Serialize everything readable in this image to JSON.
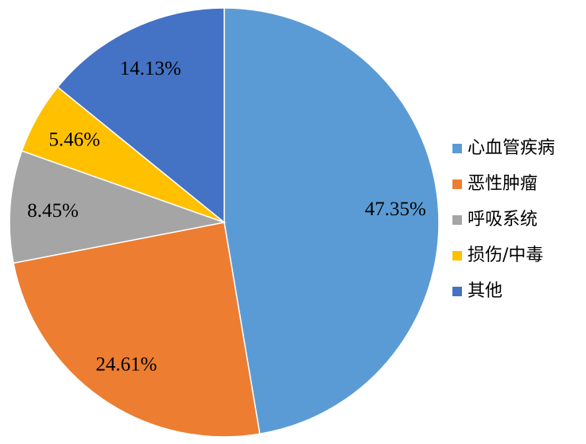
{
  "chart_data": {
    "type": "pie",
    "categories": [
      "心血管疾病",
      "恶性肿瘤",
      "呼吸系统",
      "损伤/中毒",
      "其他"
    ],
    "values": [
      47.35,
      24.61,
      8.45,
      5.46,
      14.13
    ],
    "value_labels": [
      "47.35%",
      "24.61%",
      "8.45%",
      "5.46%",
      "14.13%"
    ],
    "colors": [
      "#5b9bd5",
      "#ed7d31",
      "#a5a5a5",
      "#ffc000",
      "#4472c4"
    ],
    "legend": "right"
  }
}
